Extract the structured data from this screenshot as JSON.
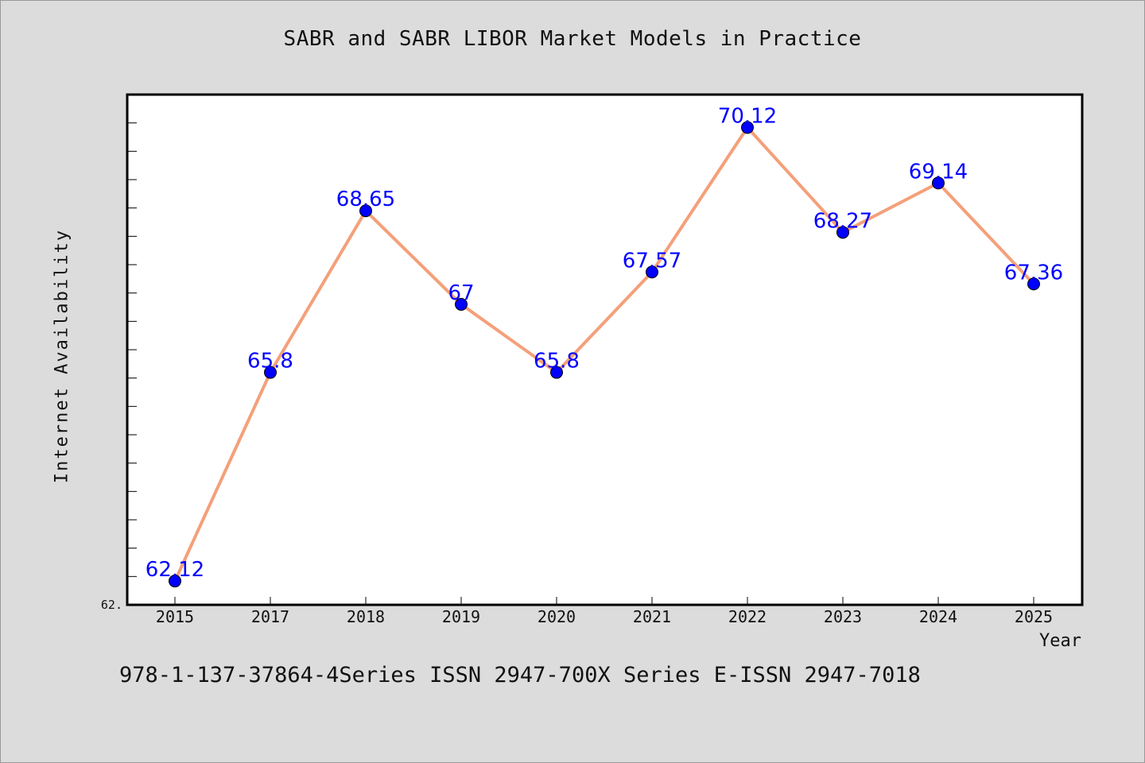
{
  "chart_data": {
    "type": "line",
    "title": "SABR and SABR LIBOR Market Models in Practice",
    "xlabel": "Year",
    "ylabel": "Internet Availability",
    "categories": [
      "2015",
      "2017",
      "2018",
      "2019",
      "2020",
      "2021",
      "2022",
      "2023",
      "2024",
      "2025"
    ],
    "series": [
      {
        "values": [
          62.12,
          65.8,
          68.65,
          67,
          65.8,
          67.57,
          70.12,
          68.27,
          69.14,
          67.36
        ],
        "labels": [
          "62.12",
          "65.8",
          "68.65",
          "67",
          "65.8",
          "67.57",
          "70.12",
          "68.27",
          "69.14",
          "67.36"
        ],
        "line_color": "#f4a07a",
        "marker_color": "#0000ff",
        "label_color": "#0000ff"
      }
    ],
    "ylim": [
      61.7,
      70.7
    ],
    "y_tick_labels": [
      "62."
    ],
    "grid": false,
    "legend": "none",
    "plot_background": "#ffffff",
    "page_background": "#dcdcdc"
  },
  "footer": {
    "note": "978-1-137-37864-4Series ISSN 2947-700X Series E-ISSN 2947-7018"
  }
}
